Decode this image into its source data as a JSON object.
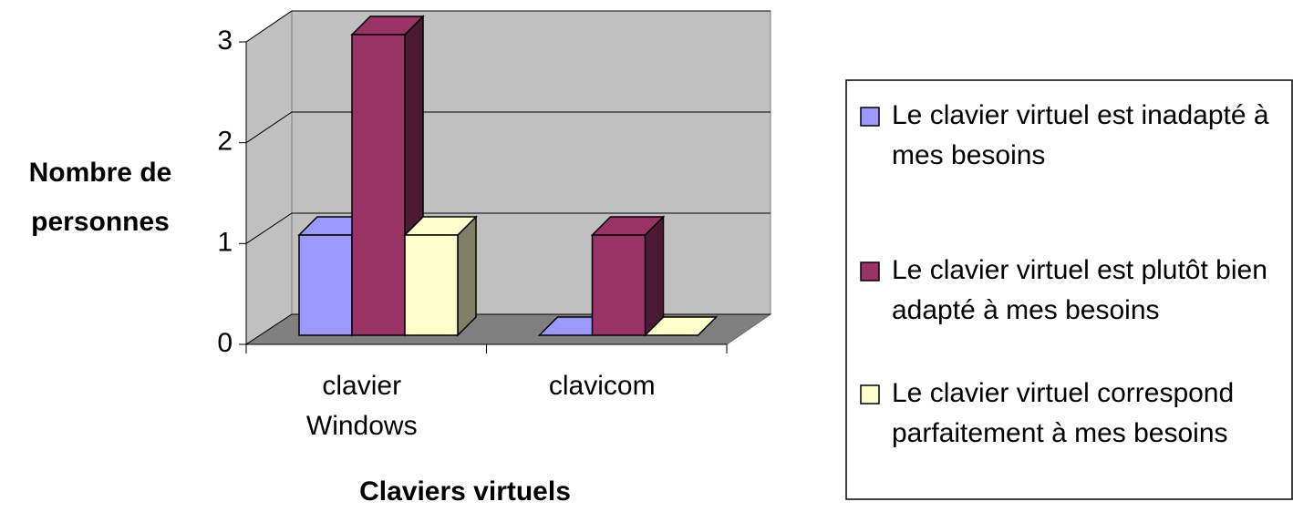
{
  "chart_data": {
    "type": "bar3d",
    "y_label": "Nombre de personnes",
    "x_label": "Claviers virtuels",
    "categories": [
      "clavier Windows",
      "clavicom"
    ],
    "series": [
      {
        "name": "Le clavier virtuel est inadapté à mes besoins",
        "color": "#9999ff",
        "values": [
          1,
          0
        ]
      },
      {
        "name": "Le clavier virtuel est plutôt bien adapté à mes besoins",
        "color": "#993366",
        "values": [
          3,
          1
        ]
      },
      {
        "name": "Le clavier virtuel correspond parfaitement à mes besoins",
        "color": "#ffffcc",
        "values": [
          1,
          0
        ]
      }
    ],
    "ylim": [
      0,
      3
    ],
    "yticks": [
      0,
      1,
      2,
      3
    ],
    "grid": true,
    "legend": "right"
  }
}
